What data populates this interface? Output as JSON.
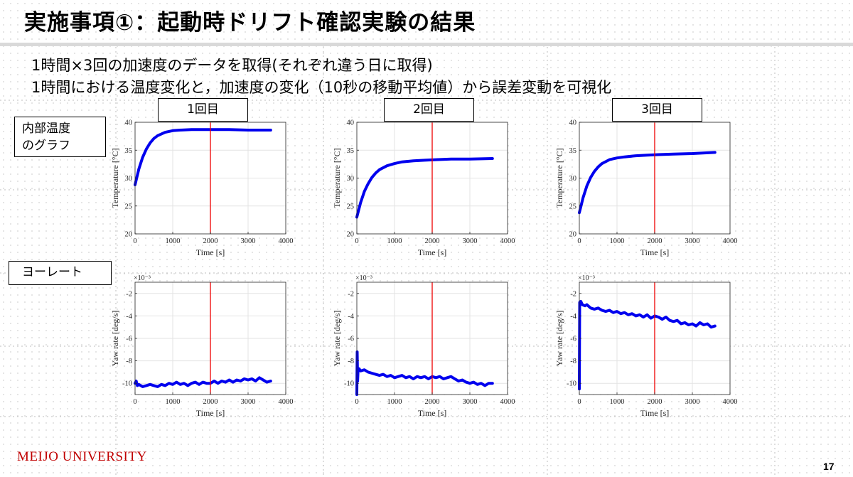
{
  "slide": {
    "title": "実施事項①：起動時ドリフト確認実験の結果",
    "bullets": [
      "1時間×3回の加速度のデータを取得(それぞれ違う日に取得)",
      "1時間における温度変化と，加速度の変化（10秒の移動平均値）から誤差変動を可視化"
    ],
    "run_labels": [
      "1回目",
      "2回目",
      "3回目"
    ],
    "row_labels": {
      "temperature": "内部温度\nのグラフ",
      "yaw": "ヨーレート"
    },
    "footer": "MEIJO UNIVERSITY",
    "page_number": "17"
  },
  "colors": {
    "series": "#0000ee",
    "marker_line": "#ee0000",
    "footer": "#c00000"
  },
  "chart_data": [
    {
      "id": "temp-1",
      "type": "line",
      "xlabel": "Time [s]",
      "ylabel": "Temperature [°C]",
      "xlim": [
        0,
        4000
      ],
      "ylim": [
        20,
        40
      ],
      "xticks": [
        0,
        1000,
        2000,
        3000,
        4000
      ],
      "yticks": [
        20,
        25,
        30,
        35,
        40
      ],
      "grid": true,
      "vline_x": 2000,
      "exponent": "",
      "series": [
        {
          "x": [
            0,
            100,
            200,
            300,
            400,
            500,
            600,
            800,
            1000,
            1200,
            1500,
            1800,
            2100,
            2500,
            3000,
            3600
          ],
          "y": [
            28.8,
            31.6,
            33.7,
            35.2,
            36.3,
            37.1,
            37.6,
            38.2,
            38.5,
            38.6,
            38.7,
            38.7,
            38.7,
            38.7,
            38.6,
            38.6
          ]
        }
      ]
    },
    {
      "id": "temp-2",
      "type": "line",
      "xlabel": "Time [s]",
      "ylabel": "Temperature [°C]",
      "xlim": [
        0,
        4000
      ],
      "ylim": [
        20,
        40
      ],
      "xticks": [
        0,
        1000,
        2000,
        3000,
        4000
      ],
      "yticks": [
        20,
        25,
        30,
        35,
        40
      ],
      "grid": true,
      "vline_x": 2000,
      "exponent": "",
      "series": [
        {
          "x": [
            0,
            100,
            200,
            300,
            400,
            500,
            600,
            800,
            1000,
            1200,
            1500,
            1800,
            2100,
            2500,
            3000,
            3600
          ],
          "y": [
            23.0,
            25.6,
            27.6,
            29.0,
            30.1,
            30.9,
            31.5,
            32.2,
            32.6,
            32.9,
            33.1,
            33.2,
            33.3,
            33.4,
            33.4,
            33.5
          ]
        }
      ]
    },
    {
      "id": "temp-3",
      "type": "line",
      "xlabel": "Time [s]",
      "ylabel": "Temperature [°C]",
      "xlim": [
        0,
        4000
      ],
      "ylim": [
        20,
        40
      ],
      "xticks": [
        0,
        1000,
        2000,
        3000,
        4000
      ],
      "yticks": [
        20,
        25,
        30,
        35,
        40
      ],
      "grid": true,
      "vline_x": 2000,
      "exponent": "",
      "series": [
        {
          "x": [
            0,
            100,
            200,
            300,
            400,
            500,
            600,
            800,
            1000,
            1200,
            1500,
            1800,
            2100,
            2500,
            3000,
            3600
          ],
          "y": [
            23.8,
            26.5,
            28.6,
            30.1,
            31.2,
            32.0,
            32.6,
            33.3,
            33.6,
            33.8,
            34.0,
            34.1,
            34.2,
            34.3,
            34.4,
            34.6
          ]
        }
      ]
    },
    {
      "id": "yaw-1",
      "type": "line",
      "xlabel": "Time [s]",
      "ylabel": "Yaw rate [deg/s]",
      "xlim": [
        0,
        4000
      ],
      "ylim": [
        -11,
        -1
      ],
      "xticks": [
        0,
        1000,
        2000,
        3000,
        4000
      ],
      "yticks": [
        -2,
        -4,
        -6,
        -8,
        -10
      ],
      "grid": true,
      "vline_x": 2000,
      "exponent": "×10⁻³",
      "series": [
        {
          "x": [
            0,
            30,
            60,
            100,
            200,
            300,
            400,
            500,
            600,
            700,
            800,
            900,
            1000,
            1100,
            1200,
            1300,
            1400,
            1500,
            1600,
            1700,
            1800,
            1900,
            2000,
            2100,
            2200,
            2300,
            2400,
            2500,
            2600,
            2700,
            2800,
            2900,
            3000,
            3100,
            3200,
            3300,
            3400,
            3500,
            3600
          ],
          "y": [
            -10.0,
            -9.8,
            -10.2,
            -10.1,
            -10.3,
            -10.2,
            -10.1,
            -10.2,
            -10.3,
            -10.1,
            -10.2,
            -10.0,
            -10.1,
            -9.9,
            -10.1,
            -10.0,
            -10.2,
            -10.0,
            -9.9,
            -10.1,
            -9.9,
            -10.0,
            -10.0,
            -9.8,
            -10.0,
            -9.8,
            -9.9,
            -9.7,
            -9.9,
            -9.7,
            -9.8,
            -9.6,
            -9.7,
            -9.6,
            -9.8,
            -9.5,
            -9.7,
            -9.9,
            -9.8
          ]
        }
      ]
    },
    {
      "id": "yaw-2",
      "type": "line",
      "xlabel": "Time [s]",
      "ylabel": "Yaw rate [deg/s]",
      "xlim": [
        0,
        4000
      ],
      "ylim": [
        -11,
        -1
      ],
      "xticks": [
        0,
        1000,
        2000,
        3000,
        4000
      ],
      "yticks": [
        -2,
        -4,
        -6,
        -8,
        -10
      ],
      "grid": true,
      "vline_x": 2000,
      "exponent": "×10⁻³",
      "series": [
        {
          "x": [
            0,
            10,
            20,
            30,
            60,
            100,
            200,
            300,
            400,
            500,
            600,
            700,
            800,
            900,
            1000,
            1100,
            1200,
            1300,
            1400,
            1500,
            1600,
            1700,
            1800,
            1900,
            2000,
            2100,
            2200,
            2300,
            2400,
            2500,
            2600,
            2700,
            2800,
            2900,
            3000,
            3100,
            3200,
            3300,
            3400,
            3500,
            3600
          ],
          "y": [
            -11.0,
            -7.2,
            -9.8,
            -9.0,
            -8.7,
            -8.9,
            -8.8,
            -9.0,
            -9.1,
            -9.2,
            -9.3,
            -9.2,
            -9.4,
            -9.3,
            -9.5,
            -9.4,
            -9.3,
            -9.5,
            -9.4,
            -9.6,
            -9.4,
            -9.5,
            -9.4,
            -9.6,
            -9.4,
            -9.5,
            -9.4,
            -9.6,
            -9.5,
            -9.4,
            -9.6,
            -9.8,
            -9.7,
            -9.9,
            -10.0,
            -9.9,
            -10.1,
            -10.0,
            -10.2,
            -10.0,
            -10.0
          ]
        }
      ]
    },
    {
      "id": "yaw-3",
      "type": "line",
      "xlabel": "Time [s]",
      "ylabel": "Yaw rate [deg/s]",
      "xlim": [
        0,
        4000
      ],
      "ylim": [
        -11,
        -1
      ],
      "xticks": [
        0,
        1000,
        2000,
        3000,
        4000
      ],
      "yticks": [
        -2,
        -4,
        -6,
        -8,
        -10
      ],
      "grid": true,
      "vline_x": 2000,
      "exponent": "×10⁻³",
      "series": [
        {
          "x": [
            0,
            10,
            20,
            40,
            80,
            150,
            200,
            300,
            400,
            500,
            600,
            700,
            800,
            900,
            1000,
            1100,
            1200,
            1300,
            1400,
            1500,
            1600,
            1700,
            1800,
            1900,
            2000,
            2100,
            2200,
            2300,
            2400,
            2500,
            2600,
            2700,
            2800,
            2900,
            3000,
            3100,
            3200,
            3300,
            3400,
            3500,
            3600
          ],
          "y": [
            -10.5,
            -2.8,
            -3.0,
            -2.7,
            -3.0,
            -3.1,
            -3.0,
            -3.3,
            -3.4,
            -3.3,
            -3.5,
            -3.6,
            -3.5,
            -3.7,
            -3.6,
            -3.8,
            -3.7,
            -3.9,
            -3.8,
            -4.0,
            -3.9,
            -4.1,
            -3.9,
            -4.2,
            -4.0,
            -4.1,
            -4.3,
            -4.1,
            -4.4,
            -4.5,
            -4.4,
            -4.7,
            -4.6,
            -4.8,
            -4.7,
            -4.9,
            -4.6,
            -4.8,
            -4.7,
            -5.0,
            -4.9
          ]
        }
      ]
    }
  ]
}
